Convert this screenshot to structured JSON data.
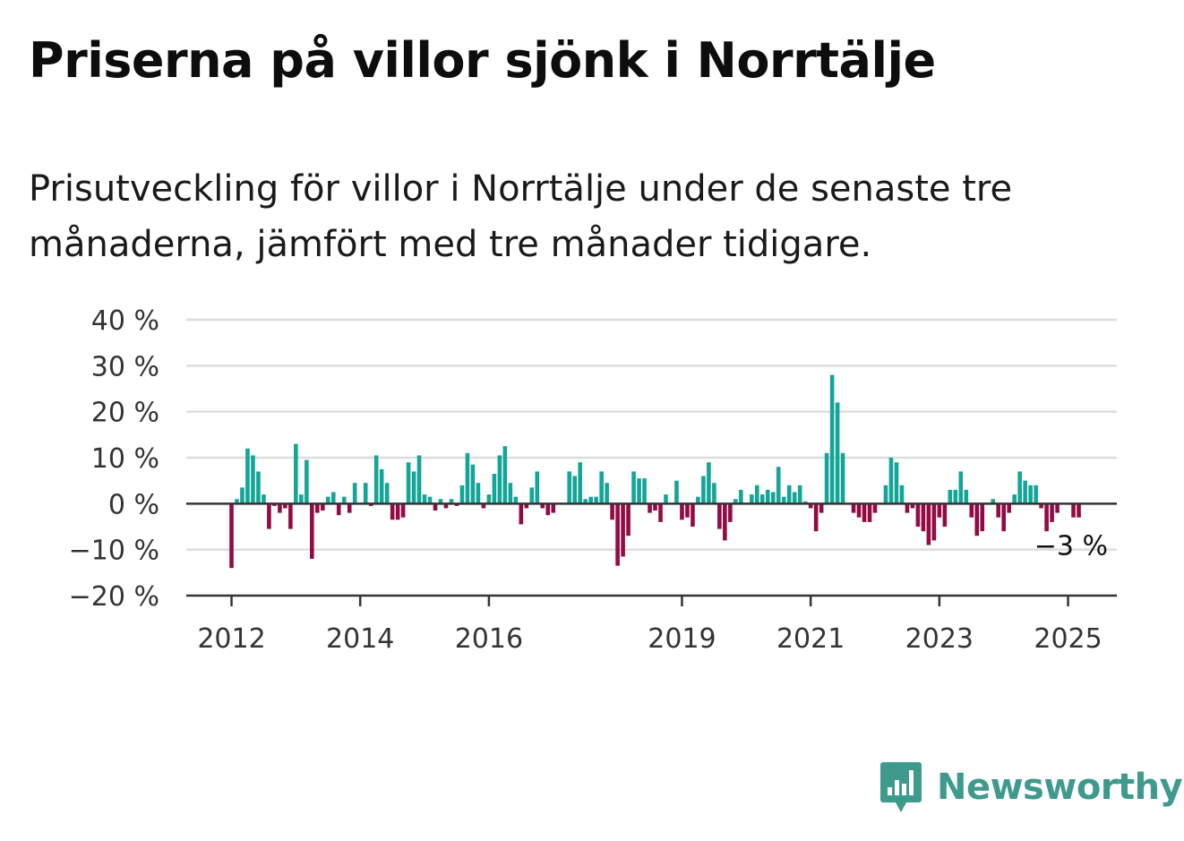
{
  "header": {
    "title": "Priserna på villor sjönk i Norrtälje",
    "subtitle": "Prisutveckling för villor i Norrtälje under de senaste tre månaderna, jämfört med tre månader tidigare."
  },
  "colors": {
    "positive": "#13a597",
    "negative": "#930a45",
    "gridline": "#dddddd",
    "axis": "#333333",
    "brand": "#3f9a8e"
  },
  "chart_data": {
    "type": "bar",
    "title": "",
    "xlabel": "",
    "ylabel": "",
    "ylim": [
      -20,
      40
    ],
    "y_ticks": [
      {
        "value": 40,
        "label": "40 %"
      },
      {
        "value": 30,
        "label": "30 %"
      },
      {
        "value": 20,
        "label": "20 %"
      },
      {
        "value": 10,
        "label": "10 %"
      },
      {
        "value": 0,
        "label": "0 %"
      },
      {
        "value": -10,
        "label": "−10 %"
      },
      {
        "value": -20,
        "label": "−20 %"
      }
    ],
    "x_ticks": [
      {
        "year": 2012,
        "label": "2012"
      },
      {
        "year": 2014,
        "label": "2014"
      },
      {
        "year": 2016,
        "label": "2016"
      },
      {
        "year": 2019,
        "label": "2019"
      },
      {
        "year": 2021,
        "label": "2021"
      },
      {
        "year": 2023,
        "label": "2023"
      },
      {
        "year": 2025,
        "label": "2025"
      }
    ],
    "start": "2012-01",
    "end": "2025-02",
    "values": [
      -14,
      1,
      3.5,
      12,
      10.5,
      7,
      2,
      -5.5,
      -0.5,
      -2,
      -1,
      -5.5,
      13,
      2,
      9.5,
      -12,
      -2,
      -1.5,
      1.5,
      2.5,
      -2.5,
      1.5,
      -2,
      4.5,
      0,
      4.5,
      -0.5,
      10.5,
      7.5,
      4.5,
      -3.5,
      -3.5,
      -3,
      9,
      7,
      10.5,
      2,
      1.5,
      -1.5,
      1,
      -1,
      1,
      -0.5,
      4,
      11,
      8.5,
      4.5,
      -1,
      2,
      6.5,
      10.5,
      12.5,
      4.5,
      1.5,
      -4.5,
      -1,
      3.5,
      7,
      -1,
      -2.5,
      -2,
      0,
      0,
      7,
      6,
      9,
      1,
      1.5,
      1.5,
      7,
      4.5,
      -3.5,
      -13.5,
      -11.5,
      -7,
      7,
      5.5,
      5.5,
      -2,
      -1.5,
      -4,
      2,
      0,
      5,
      -3.5,
      -3,
      -5,
      1.5,
      6,
      9,
      4.5,
      -5.5,
      -8,
      -4,
      1,
      3,
      0,
      2,
      4,
      2,
      3,
      2.5,
      8,
      1.5,
      4,
      2.5,
      4,
      0.5,
      -1,
      -6,
      -2,
      11,
      28,
      22,
      11,
      0,
      -2,
      -3,
      -4,
      -4,
      -2,
      0,
      4,
      10,
      9,
      4,
      -2,
      -1,
      -5,
      -6,
      -9,
      -8,
      -3,
      -5,
      3,
      3,
      7,
      3,
      -3,
      -7,
      -6,
      0,
      1,
      -3,
      -6,
      -2,
      2,
      7,
      5,
      4,
      4,
      -1,
      -6,
      -4,
      -2,
      0,
      0,
      -3,
      -3,
      0
    ],
    "annotation": {
      "text": "−3 %",
      "value": -3
    }
  },
  "brand": {
    "name": "Newsworthy",
    "logo_icon": "newsworthy-bar-chart-icon"
  }
}
